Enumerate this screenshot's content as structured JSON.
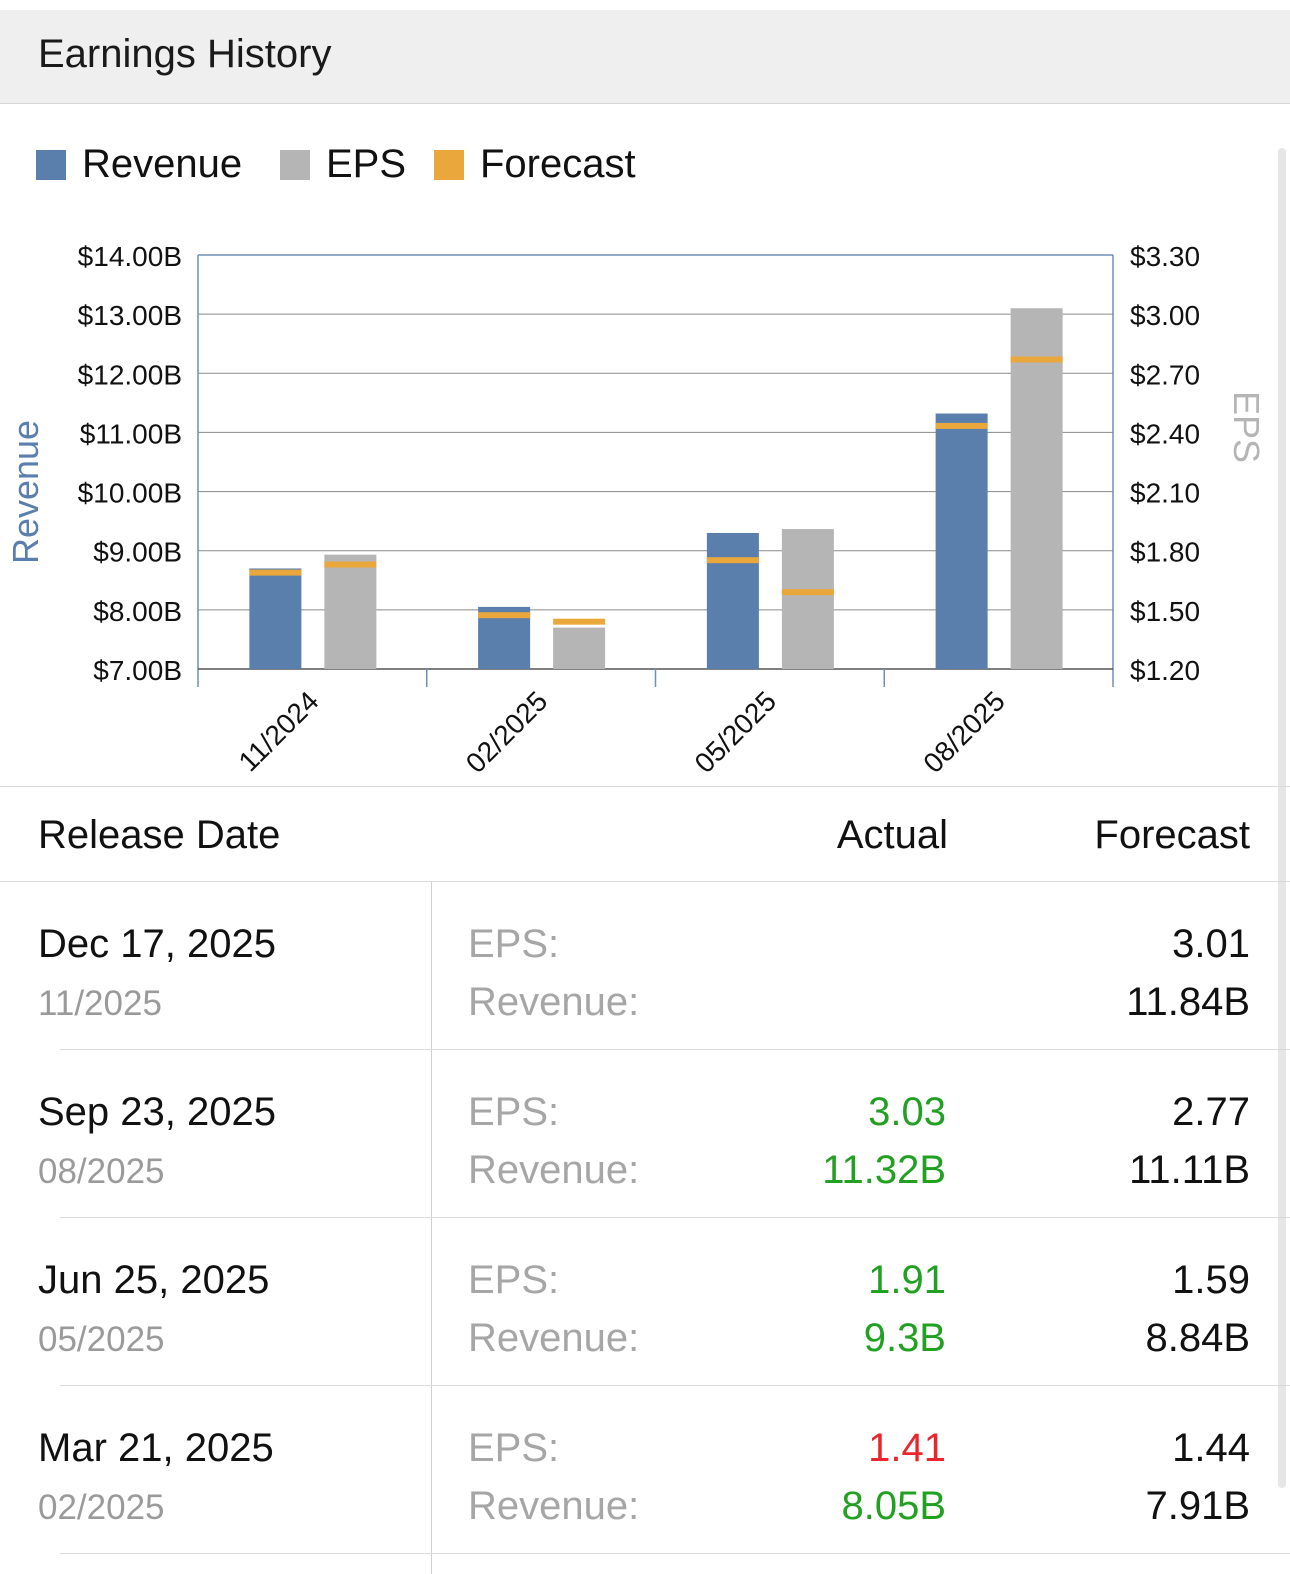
{
  "header": {
    "title": "Earnings History"
  },
  "legend": [
    {
      "label": "Revenue",
      "color": "#5b7fac"
    },
    {
      "label": "EPS",
      "color": "#b5b5b5"
    },
    {
      "label": "Forecast",
      "color": "#eaa83c"
    }
  ],
  "chart_data": {
    "type": "bar",
    "categories": [
      "11/2024",
      "02/2025",
      "05/2025",
      "08/2025"
    ],
    "series": [
      {
        "name": "Revenue",
        "axis": "left",
        "color": "#5b7fac",
        "values": [
          8.7,
          8.05,
          9.3,
          11.32
        ]
      },
      {
        "name": "EPS",
        "axis": "right",
        "color": "#b5b5b5",
        "values": [
          1.78,
          1.41,
          1.91,
          3.03
        ]
      }
    ],
    "forecast": {
      "name": "Forecast",
      "color": "#eaa83c",
      "revenue": [
        8.63,
        7.91,
        8.84,
        11.11
      ],
      "eps": [
        1.73,
        1.44,
        1.59,
        2.77
      ]
    },
    "left_axis": {
      "label": "Revenue",
      "color": "#5b7fac",
      "ticks": [
        "$7.00B",
        "$8.00B",
        "$9.00B",
        "$10.00B",
        "$11.00B",
        "$12.00B",
        "$13.00B",
        "$14.00B"
      ],
      "ylim": [
        7,
        14
      ]
    },
    "right_axis": {
      "label": "EPS",
      "color": "#b5b5b5",
      "ticks": [
        "$1.20",
        "$1.50",
        "$1.80",
        "$2.10",
        "$2.40",
        "$2.70",
        "$3.00",
        "$3.30"
      ],
      "ylim": [
        1.2,
        3.3
      ]
    },
    "grid": true,
    "legend_position": "top-left"
  },
  "table": {
    "headers": {
      "date": "Release Date",
      "actual": "Actual",
      "forecast": "Forecast"
    },
    "eps_label": "EPS:",
    "revenue_label": "Revenue:",
    "rows": [
      {
        "date": "Dec 17, 2025",
        "period": "11/2025",
        "eps_actual": "",
        "eps_actual_status": "",
        "eps_forecast": "3.01",
        "rev_actual": "",
        "rev_actual_status": "",
        "rev_forecast": "11.84B"
      },
      {
        "date": "Sep 23, 2025",
        "period": "08/2025",
        "eps_actual": "3.03",
        "eps_actual_status": "beat",
        "eps_forecast": "2.77",
        "rev_actual": "11.32B",
        "rev_actual_status": "beat",
        "rev_forecast": "11.11B"
      },
      {
        "date": "Jun 25, 2025",
        "period": "05/2025",
        "eps_actual": "1.91",
        "eps_actual_status": "beat",
        "eps_forecast": "1.59",
        "rev_actual": "9.3B",
        "rev_actual_status": "beat",
        "rev_forecast": "8.84B"
      },
      {
        "date": "Mar 21, 2025",
        "period": "02/2025",
        "eps_actual": "1.41",
        "eps_actual_status": "miss",
        "eps_forecast": "1.44",
        "rev_actual": "8.05B",
        "rev_actual_status": "beat",
        "rev_forecast": "7.91B"
      }
    ]
  }
}
